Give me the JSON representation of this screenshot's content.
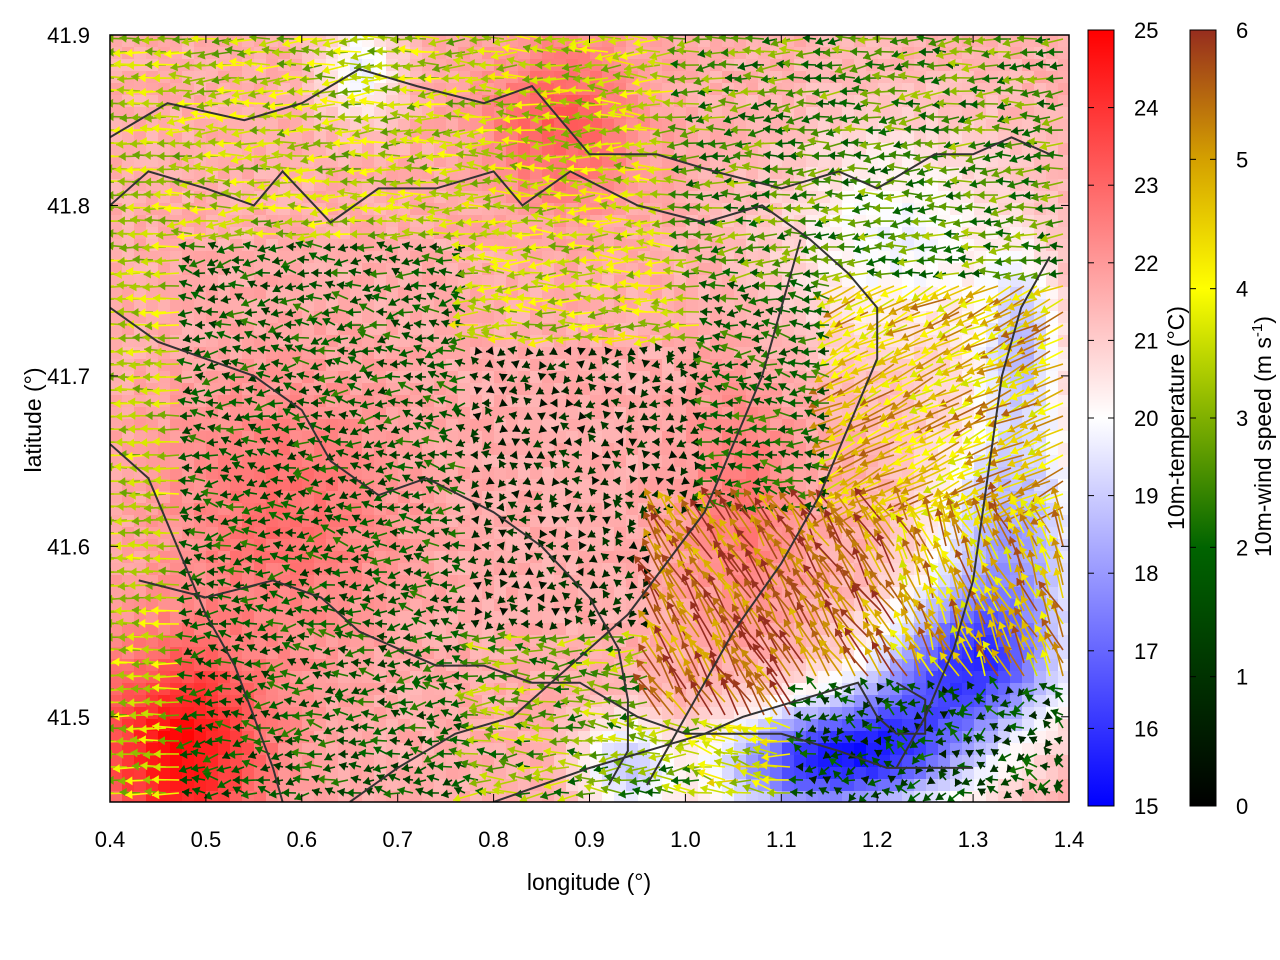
{
  "chart_data": {
    "type": "heatmap",
    "subtype": "filled map with wind vectors and contour lines",
    "xlabel": "longitude (°)",
    "ylabel": "latitude (°)",
    "xlim": [
      0.4,
      1.4
    ],
    "ylim": [
      41.45,
      41.9
    ],
    "x_ticks": [
      "0.4",
      "0.5",
      "0.6",
      "0.7",
      "0.8",
      "0.9",
      "1.0",
      "1.1",
      "1.2",
      "1.3",
      "1.4"
    ],
    "y_ticks": [
      "41.5",
      "41.6",
      "41.7",
      "41.8",
      "41.9"
    ],
    "temperature_colorbar": {
      "label": "10m-temperature (°C)",
      "range": [
        15,
        25
      ],
      "ticks": [
        "15",
        "16",
        "17",
        "18",
        "19",
        "20",
        "21",
        "22",
        "23",
        "24",
        "25"
      ],
      "stops": [
        [
          15,
          "#0000ff"
        ],
        [
          20,
          "#ffffff"
        ],
        [
          25,
          "#ff0000"
        ]
      ]
    },
    "wind_colorbar": {
      "label_main": "10m-wind speed (m s",
      "label_sup": "-1",
      "label_end": ")",
      "range": [
        0,
        6
      ],
      "ticks": [
        "0",
        "1",
        "2",
        "3",
        "4",
        "5",
        "6"
      ],
      "stops": [
        [
          0,
          "#000000"
        ],
        [
          2,
          "#006400"
        ],
        [
          3,
          "#80b000"
        ],
        [
          4,
          "#ffff00"
        ],
        [
          5,
          "#d4a000"
        ],
        [
          6,
          "#962d1e"
        ]
      ]
    },
    "temperature_field": {
      "base": 21.6,
      "anomalies": [
        {
          "x": 0.47,
          "y": 41.48,
          "dt": 3.2,
          "rx": 0.09,
          "ry": 0.06
        },
        {
          "x": 0.58,
          "y": 41.62,
          "dt": 1.2,
          "rx": 0.12,
          "ry": 0.08
        },
        {
          "x": 0.87,
          "y": 41.85,
          "dt": 1.6,
          "rx": 0.08,
          "ry": 0.05
        },
        {
          "x": 1.06,
          "y": 41.63,
          "dt": 1.1,
          "rx": 0.06,
          "ry": 0.07
        },
        {
          "x": 0.66,
          "y": 41.88,
          "dt": -2.0,
          "rx": 0.04,
          "ry": 0.03
        },
        {
          "x": 1.22,
          "y": 41.78,
          "dt": -1.8,
          "rx": 0.12,
          "ry": 0.07
        },
        {
          "x": 1.34,
          "y": 41.6,
          "dt": -3.4,
          "rx": 0.08,
          "ry": 0.08
        },
        {
          "x": 1.29,
          "y": 41.53,
          "dt": -4.4,
          "rx": 0.09,
          "ry": 0.04
        },
        {
          "x": 1.2,
          "y": 41.48,
          "dt": -5.2,
          "rx": 0.1,
          "ry": 0.035
        },
        {
          "x": 0.94,
          "y": 41.47,
          "dt": -2.6,
          "rx": 0.05,
          "ry": 0.03
        },
        {
          "x": 1.1,
          "y": 41.47,
          "dt": -3.2,
          "rx": 0.08,
          "ry": 0.03
        },
        {
          "x": 1.35,
          "y": 41.72,
          "dt": -2.4,
          "rx": 0.04,
          "ry": 0.05
        }
      ]
    },
    "wind_regions": [
      {
        "x0": 0.4,
        "x1": 0.48,
        "y0": 41.45,
        "y1": 41.9,
        "speed": [
          2.8,
          4.0
        ],
        "dir": [
          175,
          185
        ]
      },
      {
        "x0": 0.48,
        "x1": 0.78,
        "y0": 41.45,
        "y1": 41.78,
        "speed": [
          1.0,
          2.4
        ],
        "dir": [
          150,
          210
        ]
      },
      {
        "x0": 0.48,
        "x1": 0.78,
        "y0": 41.78,
        "y1": 41.9,
        "speed": [
          2.6,
          4.1
        ],
        "dir": [
          170,
          195
        ]
      },
      {
        "x0": 0.78,
        "x1": 1.0,
        "y0": 41.72,
        "y1": 41.9,
        "speed": [
          2.8,
          4.3
        ],
        "dir": [
          165,
          195
        ]
      },
      {
        "x0": 0.78,
        "x1": 1.02,
        "y0": 41.55,
        "y1": 41.72,
        "speed": [
          0.3,
          1.3
        ],
        "dir": [
          120,
          240
        ]
      },
      {
        "x0": 0.78,
        "x1": 1.02,
        "y0": 41.45,
        "y1": 41.55,
        "speed": [
          1.8,
          3.8
        ],
        "dir": [
          160,
          200
        ]
      },
      {
        "x0": 1.0,
        "x1": 1.4,
        "y0": 41.76,
        "y1": 41.9,
        "speed": [
          1.6,
          3.4
        ],
        "dir": [
          170,
          200
        ]
      },
      {
        "x0": 1.02,
        "x1": 1.16,
        "y0": 41.62,
        "y1": 41.76,
        "speed": [
          1.2,
          2.6
        ],
        "dir": [
          150,
          200
        ]
      },
      {
        "x0": 1.16,
        "x1": 1.4,
        "y0": 41.62,
        "y1": 41.76,
        "speed": [
          3.6,
          5.6
        ],
        "dir": [
          195,
          215
        ]
      },
      {
        "x0": 0.96,
        "x1": 1.22,
        "y0": 41.5,
        "y1": 41.62,
        "speed": [
          4.6,
          6.3
        ],
        "dir": [
          110,
          135
        ]
      },
      {
        "x0": 1.22,
        "x1": 1.4,
        "y0": 41.52,
        "y1": 41.62,
        "speed": [
          3.6,
          5.8
        ],
        "dir": [
          100,
          130
        ]
      },
      {
        "x0": 1.12,
        "x1": 1.4,
        "y0": 41.45,
        "y1": 41.52,
        "speed": [
          0.6,
          2.2
        ],
        "dir": [
          120,
          240
        ]
      },
      {
        "x0": 1.02,
        "x1": 1.12,
        "y0": 41.45,
        "y1": 41.5,
        "speed": [
          3.0,
          4.6
        ],
        "dir": [
          150,
          190
        ]
      }
    ],
    "contours": [
      [
        [
          0.4,
          41.84
        ],
        [
          0.46,
          41.86
        ],
        [
          0.54,
          41.85
        ],
        [
          0.6,
          41.86
        ],
        [
          0.66,
          41.88
        ],
        [
          0.72,
          41.87
        ],
        [
          0.79,
          41.86
        ],
        [
          0.84,
          41.87
        ],
        [
          0.9,
          41.83
        ],
        [
          0.97,
          41.83
        ],
        [
          1.03,
          41.82
        ],
        [
          1.1,
          41.81
        ],
        [
          1.16,
          41.82
        ],
        [
          1.2,
          41.81
        ],
        [
          1.26,
          41.83
        ],
        [
          1.3,
          41.83
        ],
        [
          1.34,
          41.84
        ],
        [
          1.38,
          41.83
        ]
      ],
      [
        [
          0.4,
          41.8
        ],
        [
          0.44,
          41.82
        ],
        [
          0.5,
          41.81
        ],
        [
          0.55,
          41.8
        ],
        [
          0.58,
          41.82
        ],
        [
          0.63,
          41.79
        ],
        [
          0.68,
          41.81
        ],
        [
          0.74,
          41.81
        ],
        [
          0.8,
          41.82
        ],
        [
          0.83,
          41.8
        ],
        [
          0.88,
          41.82
        ],
        [
          0.95,
          41.8
        ],
        [
          1.02,
          41.79
        ],
        [
          1.08,
          41.8
        ],
        [
          1.13,
          41.78
        ],
        [
          1.17,
          41.76
        ],
        [
          1.2,
          41.74
        ],
        [
          1.2,
          41.71
        ],
        [
          1.17,
          41.67
        ],
        [
          1.14,
          41.63
        ],
        [
          1.1,
          41.59
        ],
        [
          1.05,
          41.55
        ],
        [
          1.01,
          41.51
        ],
        [
          0.98,
          41.48
        ],
        [
          0.96,
          41.46
        ]
      ],
      [
        [
          0.4,
          41.74
        ],
        [
          0.45,
          41.72
        ],
        [
          0.5,
          41.71
        ],
        [
          0.55,
          41.7
        ],
        [
          0.6,
          41.68
        ],
        [
          0.63,
          41.65
        ],
        [
          0.68,
          41.63
        ],
        [
          0.73,
          41.64
        ],
        [
          0.8,
          41.62
        ],
        [
          0.85,
          41.6
        ],
        [
          0.9,
          41.57
        ],
        [
          0.93,
          41.54
        ],
        [
          0.94,
          41.51
        ],
        [
          0.94,
          41.48
        ],
        [
          0.92,
          41.46
        ]
      ],
      [
        [
          0.4,
          41.66
        ],
        [
          0.44,
          41.64
        ],
        [
          0.47,
          41.6
        ],
        [
          0.5,
          41.56
        ],
        [
          0.53,
          41.53
        ],
        [
          0.55,
          41.5
        ],
        [
          0.57,
          41.47
        ],
        [
          0.58,
          41.45
        ]
      ],
      [
        [
          0.43,
          41.58
        ],
        [
          0.5,
          41.57
        ],
        [
          0.57,
          41.58
        ],
        [
          0.62,
          41.57
        ],
        [
          0.66,
          41.55
        ],
        [
          0.7,
          41.54
        ],
        [
          0.74,
          41.53
        ],
        [
          0.79,
          41.53
        ],
        [
          0.84,
          41.52
        ],
        [
          0.89,
          41.52
        ],
        [
          0.95,
          41.5
        ],
        [
          1.0,
          41.49
        ],
        [
          1.06,
          41.49
        ],
        [
          1.1,
          41.49
        ],
        [
          1.16,
          41.48
        ],
        [
          1.21,
          41.47
        ],
        [
          1.25,
          41.47
        ],
        [
          1.3,
          41.47
        ]
      ],
      [
        [
          0.65,
          41.45
        ],
        [
          0.7,
          41.47
        ],
        [
          0.76,
          41.49
        ],
        [
          0.82,
          41.5
        ],
        [
          0.86,
          41.52
        ],
        [
          0.9,
          41.54
        ],
        [
          0.94,
          41.56
        ],
        [
          0.98,
          41.59
        ],
        [
          1.02,
          41.62
        ],
        [
          1.05,
          41.66
        ],
        [
          1.08,
          41.7
        ],
        [
          1.1,
          41.74
        ],
        [
          1.12,
          41.78
        ]
      ],
      [
        [
          1.22,
          41.47
        ],
        [
          1.25,
          41.5
        ],
        [
          1.28,
          41.54
        ],
        [
          1.3,
          41.58
        ],
        [
          1.31,
          41.62
        ],
        [
          1.32,
          41.66
        ],
        [
          1.33,
          41.7
        ],
        [
          1.35,
          41.74
        ],
        [
          1.38,
          41.77
        ]
      ],
      [
        [
          0.8,
          41.45
        ],
        [
          0.85,
          41.46
        ],
        [
          0.9,
          41.47
        ],
        [
          0.96,
          41.48
        ],
        [
          1.02,
          41.49
        ],
        [
          1.06,
          41.5
        ],
        [
          1.12,
          41.51
        ],
        [
          1.18,
          41.52
        ],
        [
          1.2,
          41.5
        ],
        [
          1.22,
          41.49
        ],
        [
          1.25,
          41.49
        ],
        [
          1.25,
          41.51
        ],
        [
          1.22,
          41.52
        ]
      ]
    ]
  }
}
